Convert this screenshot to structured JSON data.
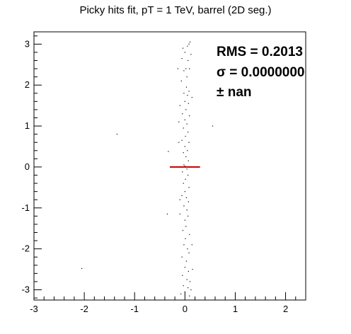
{
  "chart_data": {
    "type": "scatter",
    "title": "Picky hits fit, pT = 1 TeV, barrel (2D seg.)",
    "xlabel": "",
    "ylabel": "",
    "xlim": [
      -3,
      2.4
    ],
    "ylim": [
      -3.25,
      3.3
    ],
    "x_ticks": [
      -3,
      -2,
      -1,
      0,
      1,
      2
    ],
    "y_ticks": [
      -3,
      -2,
      -1,
      0,
      1,
      2,
      3
    ],
    "x_tick_labels": [
      "-3",
      "-2",
      "-1",
      "0",
      "1",
      "2"
    ],
    "y_tick_labels": [
      "-3",
      "-2",
      "-1",
      "0",
      "1",
      "2",
      "3"
    ],
    "grid": false,
    "stats": {
      "rms_label": "RMS = 0.2013",
      "sigma_label": "σ = 0.0000000",
      "err_label": "± nan"
    },
    "fit_line": {
      "x": [
        -0.3,
        0.3
      ],
      "y": [
        0,
        0
      ],
      "color": "#cc0000"
    },
    "point_color": "#000000",
    "series": [
      {
        "values": [
          [
            0.05,
            2.95
          ],
          [
            0.08,
            3.0
          ],
          [
            -0.04,
            2.9
          ],
          [
            0.1,
            3.05
          ],
          [
            0.12,
            2.75
          ],
          [
            0.0,
            2.8
          ],
          [
            -0.06,
            2.65
          ],
          [
            0.06,
            2.6
          ],
          [
            0.02,
            2.4
          ],
          [
            -0.02,
            2.35
          ],
          [
            0.09,
            2.4
          ],
          [
            0.04,
            2.2
          ],
          [
            -0.07,
            2.1
          ],
          [
            0.03,
            1.95
          ],
          [
            0.08,
            1.85
          ],
          [
            -0.02,
            1.8
          ],
          [
            0.05,
            1.75
          ],
          [
            0.0,
            1.6
          ],
          [
            -0.1,
            1.5
          ],
          [
            0.07,
            1.55
          ],
          [
            0.02,
            1.4
          ],
          [
            -0.05,
            1.3
          ],
          [
            0.09,
            1.25
          ],
          [
            0.0,
            1.15
          ],
          [
            0.04,
            1.05
          ],
          [
            -0.03,
            0.95
          ],
          [
            0.06,
            0.85
          ],
          [
            0.01,
            0.75
          ],
          [
            -0.06,
            0.65
          ],
          [
            0.08,
            0.6
          ],
          [
            0.0,
            0.5
          ],
          [
            0.05,
            0.4
          ],
          [
            -0.03,
            0.35
          ],
          [
            0.02,
            0.25
          ],
          [
            0.07,
            0.15
          ],
          [
            -0.02,
            0.05
          ],
          [
            0.0,
            0.02
          ],
          [
            0.04,
            -0.05
          ],
          [
            -0.05,
            -0.12
          ],
          [
            0.06,
            -0.2
          ],
          [
            0.01,
            -0.3
          ],
          [
            -0.03,
            -0.4
          ],
          [
            0.08,
            -0.5
          ],
          [
            0.0,
            -0.6
          ],
          [
            -0.06,
            -0.7
          ],
          [
            0.03,
            -0.75
          ],
          [
            0.07,
            -0.85
          ],
          [
            -0.02,
            -0.95
          ],
          [
            0.04,
            -1.05
          ],
          [
            -0.1,
            -1.15
          ],
          [
            0.06,
            -1.2
          ],
          [
            0.0,
            -1.3
          ],
          [
            0.02,
            -1.45
          ],
          [
            -0.04,
            -1.55
          ],
          [
            0.09,
            -1.65
          ],
          [
            0.01,
            -1.75
          ],
          [
            -0.02,
            -1.9
          ],
          [
            0.05,
            -2.0
          ],
          [
            0.08,
            -2.1
          ],
          [
            -0.06,
            -2.2
          ],
          [
            0.03,
            -2.3
          ],
          [
            0.0,
            -2.45
          ],
          [
            0.07,
            -2.55
          ],
          [
            -0.05,
            -2.65
          ],
          [
            0.04,
            -2.75
          ],
          [
            0.1,
            -2.8
          ],
          [
            -0.03,
            -2.9
          ],
          [
            0.06,
            -2.95
          ],
          [
            0.0,
            -3.05
          ],
          [
            0.12,
            -3.0
          ],
          [
            -0.08,
            -3.1
          ],
          [
            0.09,
            -3.15
          ],
          [
            -0.35,
            -1.15
          ],
          [
            -0.33,
            0.38
          ],
          [
            0.55,
            1.0
          ],
          [
            -1.35,
            0.8
          ],
          [
            -2.05,
            -2.48
          ],
          [
            -0.12,
            0.6
          ],
          [
            -0.1,
            -0.8
          ],
          [
            0.14,
            1.7
          ],
          [
            0.14,
            -1.9
          ],
          [
            -0.14,
            2.4
          ],
          [
            0.15,
            -2.5
          ],
          [
            -0.12,
            1.1
          ]
        ]
      }
    ]
  }
}
